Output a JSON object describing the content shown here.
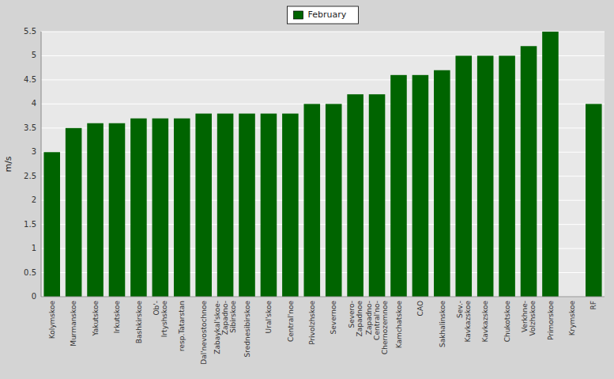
{
  "chart_data": {
    "type": "bar",
    "ylabel": "m/s",
    "categories": [
      "Kolymskoe",
      "Murmanskoe",
      "Yakutskoe",
      "Irkutskoe",
      "Bashkirskoe",
      "Ob'-\nIrtyshskoe",
      "resp.Tatarstan",
      "Dal'nevostochnoe",
      "Zabaykal'skoe-\nZapadno-\nSibirskoe",
      "Srednesibirskoe",
      "Ural'skoe",
      "Central'noe",
      "Privolzhskoe",
      "Severnoe",
      "Severo-\nZapadnoe",
      "Zapadno-\nCentral'no-\nChernozemnoe",
      "Kamchatskoe",
      "CAO",
      "Sakhalinskoe",
      "Sev.-\nKavkazskoe",
      "Kavkazskoe",
      "Chukotskoe",
      "Verkhne-\nVolzhskoe",
      "Primorskoe",
      "Krymskoe",
      "RF"
    ],
    "series": [
      {
        "name": "February",
        "color": "#006400",
        "values": [
          3.0,
          3.5,
          3.6,
          3.6,
          3.7,
          3.7,
          3.7,
          3.8,
          3.8,
          3.8,
          3.8,
          3.8,
          4.0,
          4.0,
          4.2,
          4.2,
          4.6,
          4.6,
          4.7,
          5.0,
          5.0,
          5.0,
          5.2,
          5.5,
          0.0,
          4.0
        ]
      }
    ],
    "ylim": [
      0,
      5.5
    ],
    "yticks": [
      0,
      0.5,
      1.0,
      1.5,
      2.0,
      2.5,
      3.0,
      3.5,
      4.0,
      4.5,
      5.0,
      5.5
    ],
    "grid": true,
    "legend": "top"
  }
}
